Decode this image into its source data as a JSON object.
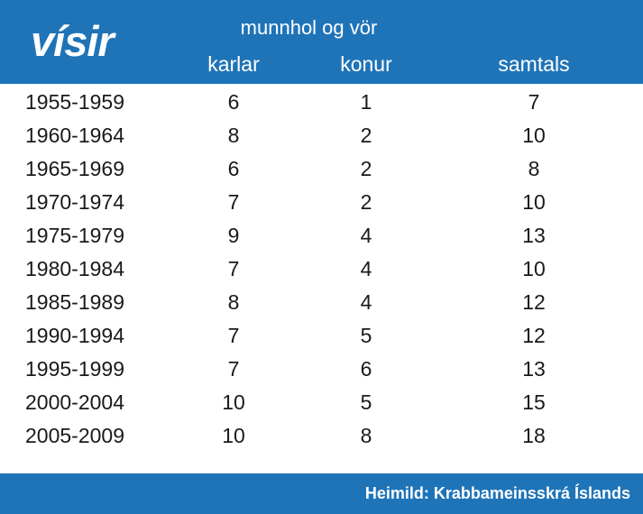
{
  "header": {
    "logo_text": "vísir",
    "group_title": "munnhol og vör",
    "col_karlar": "karlar",
    "col_konur": "konur",
    "col_samtals": "samtals"
  },
  "footer": {
    "source": "Heimild: Krabbameinsskrá Íslands"
  },
  "colors": {
    "brand_blue": "#1f74b8",
    "text": "#1a1a1a"
  },
  "chart_data": {
    "type": "table",
    "title": "munnhol og vör",
    "columns": [
      "",
      "karlar",
      "konur",
      "samtals"
    ],
    "rows": [
      [
        "1955-1959",
        "6",
        "1",
        "7"
      ],
      [
        "1960-1964",
        "8",
        "2",
        "10"
      ],
      [
        "1965-1969",
        "6",
        "2",
        "8"
      ],
      [
        "1970-1974",
        "7",
        "2",
        "10"
      ],
      [
        "1975-1979",
        "9",
        "4",
        "13"
      ],
      [
        "1980-1984",
        "7",
        "4",
        "10"
      ],
      [
        "1985-1989",
        "8",
        "4",
        "12"
      ],
      [
        "1990-1994",
        "7",
        "5",
        "12"
      ],
      [
        "1995-1999",
        "7",
        "6",
        "13"
      ],
      [
        "2000-2004",
        "10",
        "5",
        "15"
      ],
      [
        "2005-2009",
        "10",
        "8",
        "18"
      ]
    ]
  }
}
